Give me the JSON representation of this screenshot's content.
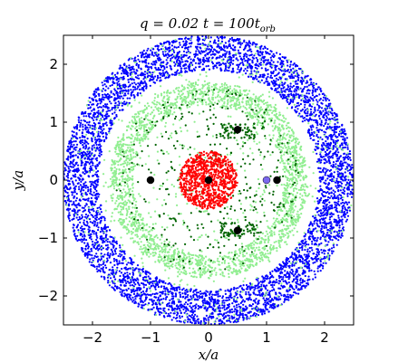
{
  "chart_data": {
    "type": "scatter",
    "title": {
      "q_part": "q = 0.02",
      "t_prefix": "t = 100t",
      "t_sub": "orb"
    },
    "xlabel": "x/a",
    "ylabel": "y/a",
    "xlim": [
      -2.5,
      2.5
    ],
    "ylim": [
      -2.5,
      2.5
    ],
    "xticks": [
      -2,
      -1,
      0,
      1,
      2
    ],
    "yticks": [
      -2,
      -1,
      0,
      1,
      2
    ],
    "xtick_labels": [
      "−2",
      "−1",
      "0",
      "1",
      "2"
    ],
    "ytick_labels": [
      "−2",
      "−1",
      "0",
      "1",
      "2"
    ],
    "grid": false,
    "legend": "none",
    "colors": {
      "outer_disk": "#0000ff",
      "middle_ring": "#90ee90",
      "scattered": "#006400",
      "inner_disk": "#ff0000",
      "star": "#000000",
      "planet": "#7b68ee"
    },
    "series": [
      {
        "r_min": 1.9,
        "r_max": 2.5,
        "count": 5200,
        "color_key": "outer_disk"
      },
      {
        "r_min": 1.3,
        "r_max": 1.7,
        "count": 2200,
        "color_key": "middle_ring"
      },
      {
        "r_min": 0.0,
        "r_max": 2.5,
        "count": 700,
        "color_key": "middle_ring"
      },
      {
        "r_min": 0.35,
        "r_max": 1.6,
        "count": 350,
        "color_key": "scattered"
      },
      {
        "r_min": 0.0,
        "r_max": 0.5,
        "count": 900,
        "color_key": "inner_disk"
      }
    ],
    "lagrange_clumps": [
      {
        "x": 0.5,
        "y": 0.85,
        "count": 60
      },
      {
        "x": 0.5,
        "y": -0.85,
        "count": 60
      }
    ],
    "markers": [
      {
        "x": 0.0,
        "y": 0.0,
        "color_key": "star"
      },
      {
        "x": 1.0,
        "y": 0.0,
        "color_key": "planet"
      },
      {
        "x": -1.0,
        "y": 0.0,
        "color_key": "star"
      },
      {
        "x": 1.18,
        "y": 0.0,
        "color_key": "star"
      },
      {
        "x": 0.5,
        "y": 0.87,
        "color_key": "star"
      },
      {
        "x": 0.5,
        "y": -0.87,
        "color_key": "star"
      }
    ]
  }
}
